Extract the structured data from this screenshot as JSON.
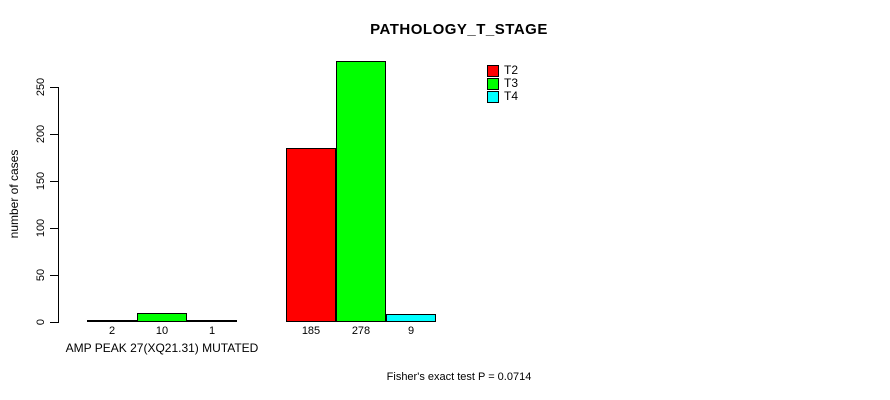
{
  "title": "PATHOLOGY_T_STAGE",
  "chart_data": {
    "type": "bar",
    "title": "PATHOLOGY_T_STAGE",
    "ylabel": "number of cases",
    "xlabel": "AMP PEAK 27(XQ21.31) MUTATED",
    "footnote": "Fisher's exact test P = 0.0714",
    "ylim": [
      0,
      250
    ],
    "yticks": [
      0,
      50,
      100,
      150,
      200,
      250
    ],
    "grid": false,
    "legend_position": "top-right",
    "background": "#ffffff",
    "axis_color": "#000000",
    "categories": [
      "AMP PEAK 27(XQ21.31) MUTATED",
      ""
    ],
    "series": [
      {
        "name": "T2",
        "color": "#ff0000",
        "values": [
          2,
          185
        ]
      },
      {
        "name": "T3",
        "color": "#00ff00",
        "values": [
          10,
          278
        ]
      },
      {
        "name": "T4",
        "color": "#00ffff",
        "values": [
          1,
          9
        ]
      }
    ],
    "bar_value_labels": [
      [
        "2",
        "10",
        "1"
      ],
      [
        "185",
        "278",
        "9"
      ]
    ]
  }
}
